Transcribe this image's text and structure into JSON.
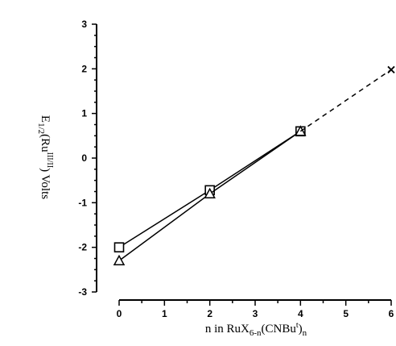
{
  "chart_data": {
    "type": "line",
    "title": "",
    "xlabel": "n in RuX6-n(CNBut)n",
    "xlabel_parts": {
      "pre": "n in RuX",
      "sub1": "6-n",
      "mid": "(CNBu",
      "sup1": "t",
      "close": ")",
      "sub2": "n"
    },
    "ylabel": "E1/2(RuIII/II) Volts",
    "ylabel_parts": {
      "e": "E",
      "sub": "1/2",
      "open": "(Ru",
      "sup": "III/II",
      "close": ") Volts"
    },
    "xlim": [
      0,
      6
    ],
    "ylim": [
      -3,
      3
    ],
    "x_ticks": [
      0,
      1,
      2,
      3,
      4,
      5,
      6
    ],
    "y_ticks": [
      -3,
      -2,
      -1,
      0,
      1,
      2,
      3
    ],
    "grid": false,
    "series": [
      {
        "marker": "square",
        "line": "solid",
        "x": [
          0,
          2,
          4
        ],
        "y": [
          -2.0,
          -0.72,
          0.6
        ]
      },
      {
        "marker": "triangle",
        "line": "solid",
        "x": [
          0,
          2,
          4
        ],
        "y": [
          -2.3,
          -0.8,
          0.6
        ]
      },
      {
        "marker": "none",
        "line": "dashed",
        "x": [
          4,
          6
        ],
        "y": [
          0.6,
          1.98
        ]
      },
      {
        "marker": "x",
        "line": "none",
        "x": [
          6
        ],
        "y": [
          1.98
        ]
      }
    ]
  }
}
